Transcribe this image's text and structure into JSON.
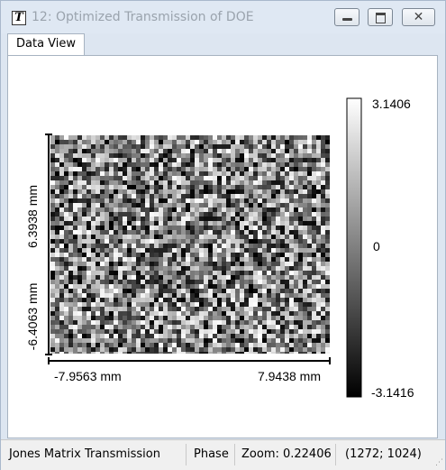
{
  "window": {
    "title": "12: Optimized Transmission of DOE",
    "icon": "T",
    "buttons": {
      "minimize": "minimize-icon",
      "maximize": "maximize-icon",
      "close": "close-icon"
    }
  },
  "tabs": [
    {
      "label": "Data View",
      "active": true
    }
  ],
  "plot": {
    "x_min_label": "-7.9563 mm",
    "x_max_label": "7.9438 mm",
    "y_max_label": "6.3938 mm",
    "y_min_label": "-6.4063 mm",
    "colorbar": {
      "max": "3.1406",
      "mid": "0",
      "min": "-3.1416",
      "colormap": "grayscale"
    }
  },
  "status": {
    "mode": "Jones Matrix Transmission",
    "component": "Phase",
    "zoom": "Zoom: 0.22406",
    "size": "(1272; 1024)"
  },
  "colors": {
    "title_text": "#9aa3ad",
    "frame": "#dde6f1",
    "border": "#a7b3c1"
  }
}
